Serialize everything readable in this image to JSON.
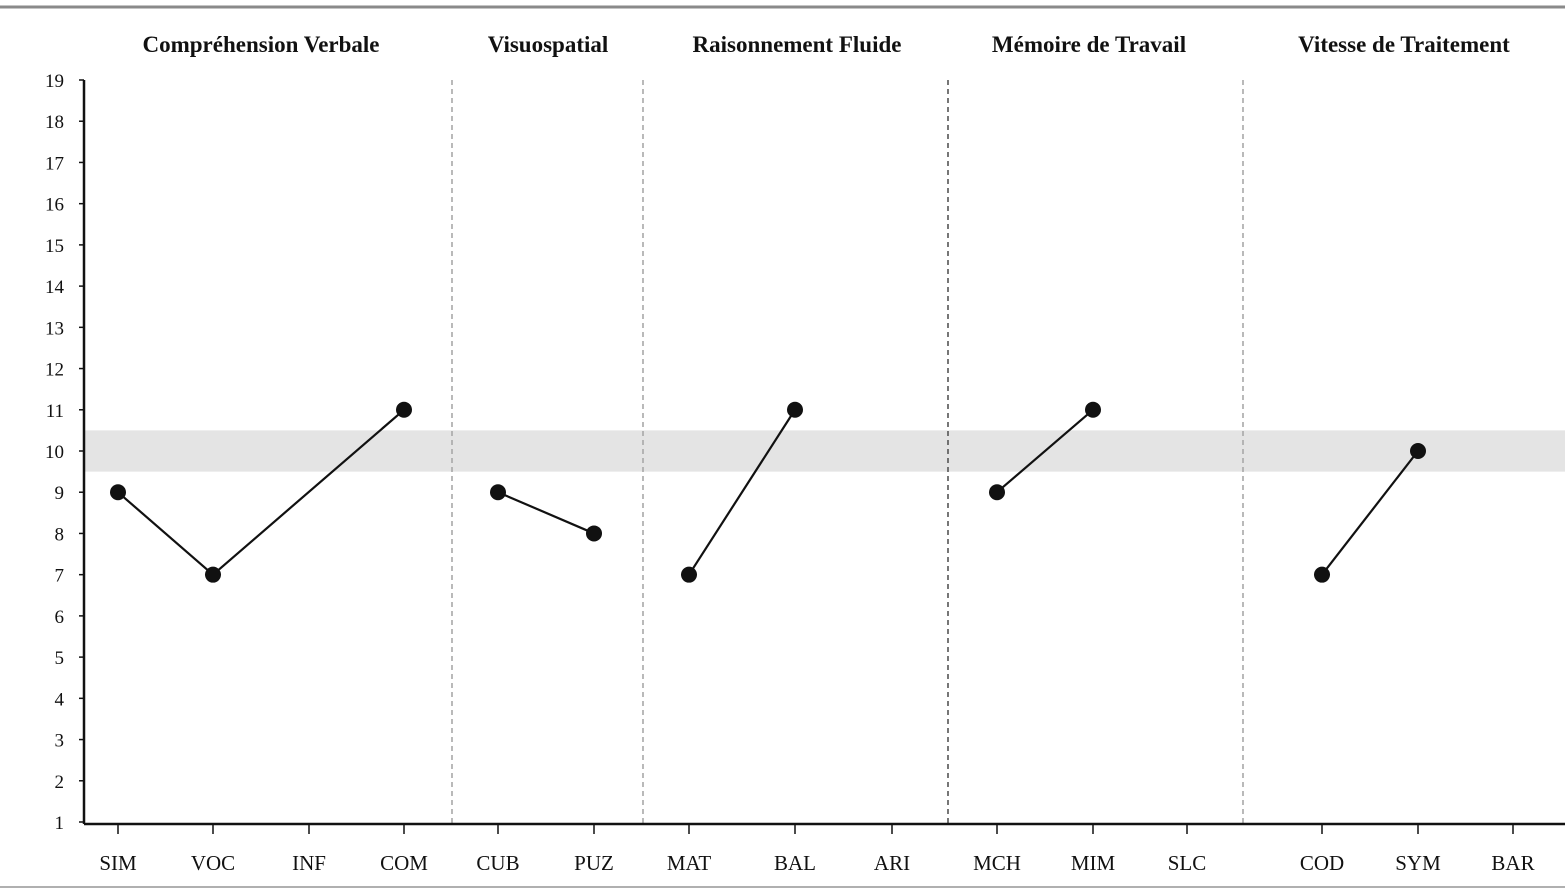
{
  "chart_data": {
    "type": "line",
    "title": "",
    "xlabel": "",
    "ylabel": "",
    "ylim": [
      1,
      19
    ],
    "yticks": [
      1,
      2,
      3,
      4,
      5,
      6,
      7,
      8,
      9,
      10,
      11,
      12,
      13,
      14,
      15,
      16,
      17,
      18,
      19
    ],
    "grid": false,
    "legend": "none",
    "reference_band": {
      "from": 9.5,
      "to": 10.5,
      "color": "#e4e4e4"
    },
    "line_color": "#111111",
    "domains": [
      {
        "name": "Compréhension Verbale",
        "subtests": [
          {
            "code": "SIM",
            "value": 9
          },
          {
            "code": "VOC",
            "value": 7
          },
          {
            "code": "INF",
            "value": null
          },
          {
            "code": "COM",
            "value": 11
          }
        ]
      },
      {
        "name": "Visuospatial",
        "subtests": [
          {
            "code": "CUB",
            "value": 9
          },
          {
            "code": "PUZ",
            "value": 8
          }
        ]
      },
      {
        "name": "Raisonnement Fluide",
        "subtests": [
          {
            "code": "MAT",
            "value": 7
          },
          {
            "code": "BAL",
            "value": 11
          },
          {
            "code": "ARI",
            "value": null
          }
        ]
      },
      {
        "name": "Mémoire de Travail",
        "subtests": [
          {
            "code": "MCH",
            "value": 9
          },
          {
            "code": "MIM",
            "value": 11
          },
          {
            "code": "SLC",
            "value": null
          }
        ]
      },
      {
        "name": "Vitesse de Traitement",
        "subtests": [
          {
            "code": "COD",
            "value": 7
          },
          {
            "code": "SYM",
            "value": 10
          },
          {
            "code": "BAR",
            "value": null
          }
        ]
      }
    ]
  }
}
